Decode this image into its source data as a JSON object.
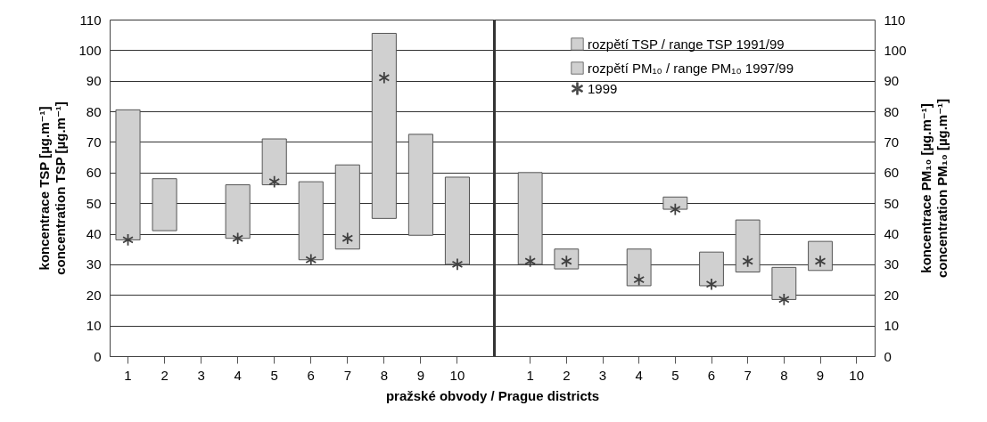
{
  "chart_data": [
    {
      "type": "bar",
      "categories": [
        "1",
        "2",
        "3",
        "4",
        "5",
        "6",
        "7",
        "8",
        "9",
        "10"
      ],
      "xlabel": "pražské obvody / Prague districts",
      "ylabel": "koncentrace TSP [µg.m⁻¹]\nconcentration TSP [µg.m⁻¹]",
      "ylim": [
        0,
        110
      ],
      "yticks": [
        0,
        10,
        20,
        30,
        40,
        50,
        60,
        70,
        80,
        90,
        100,
        110
      ],
      "grid": "y",
      "legend": "top right",
      "series": [
        {
          "name": "rozpětí TSP / range TSP 1991/99",
          "color": "#d0d0d0",
          "values": [
            42.5,
            17,
            null,
            17.5,
            15,
            25.5,
            27.5,
            60.5,
            33,
            28.5
          ],
          "base": [
            38,
            41,
            null,
            38.5,
            56,
            31.5,
            35,
            45,
            39.5,
            30
          ]
        },
        {
          "type": "scatter",
          "marker": "cross",
          "color": "#404040",
          "values": [
            38,
            null,
            null,
            38.5,
            57,
            31.5,
            38.5,
            91,
            null,
            30
          ]
        }
      ]
    },
    {
      "type": "bar",
      "categories": [
        "1",
        "2",
        "3",
        "4",
        "5",
        "6",
        "7",
        "8",
        "9",
        "10"
      ],
      "ylabel": "koncentrace PM₁₀ [µg.m⁻¹]\nconcentration PM₁₀ [µg.m⁻¹]",
      "ylim": [
        0,
        110
      ],
      "yticks": [
        0,
        10,
        20,
        30,
        40,
        50,
        60,
        70,
        80,
        90,
        100,
        110
      ],
      "grid": "y",
      "legend": "top right",
      "series": [
        {
          "name": "rozpětí PM₁₀ / range PM₁₀ 1997/99",
          "color": "#d0d0d0",
          "values": [
            30,
            6.5,
            null,
            12,
            4,
            11,
            17,
            10.5,
            9.5,
            null
          ],
          "base": [
            30,
            28.5,
            null,
            23,
            48,
            23,
            27.5,
            18.5,
            28,
            null
          ]
        },
        {
          "name": "1999",
          "type": "scatter",
          "marker": "cross",
          "color": "#404040",
          "values": [
            31,
            31,
            null,
            25,
            48,
            23.5,
            31,
            18.5,
            31,
            null
          ]
        }
      ]
    }
  ]
}
